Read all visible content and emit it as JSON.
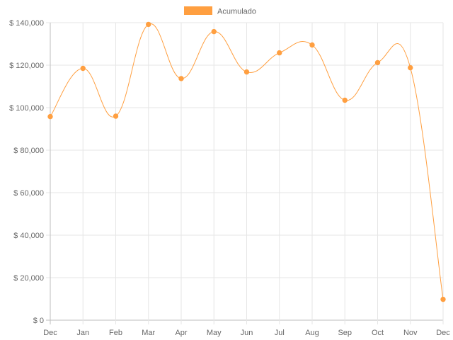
{
  "chart_data": {
    "type": "line",
    "categories": [
      "Dec",
      "Jan",
      "Feb",
      "Mar",
      "Apr",
      "May",
      "Jun",
      "Jul",
      "Aug",
      "Sep",
      "Oct",
      "Nov",
      "Dec"
    ],
    "series": [
      {
        "name": "Acumulado",
        "color": "#ff9f40",
        "values": [
          95800,
          118500,
          96000,
          139200,
          113700,
          135800,
          116800,
          125800,
          129500,
          103500,
          121200,
          118800,
          9800
        ]
      }
    ],
    "y_ticks": [
      "$ 0",
      "$ 20,000",
      "$ 40,000",
      "$ 60,000",
      "$ 80,000",
      "$ 100,000",
      "$ 120,000",
      "$ 140,000"
    ],
    "ylim": [
      0,
      140000
    ],
    "grid": true,
    "legend_position": "top-center",
    "curve": "smooth"
  }
}
